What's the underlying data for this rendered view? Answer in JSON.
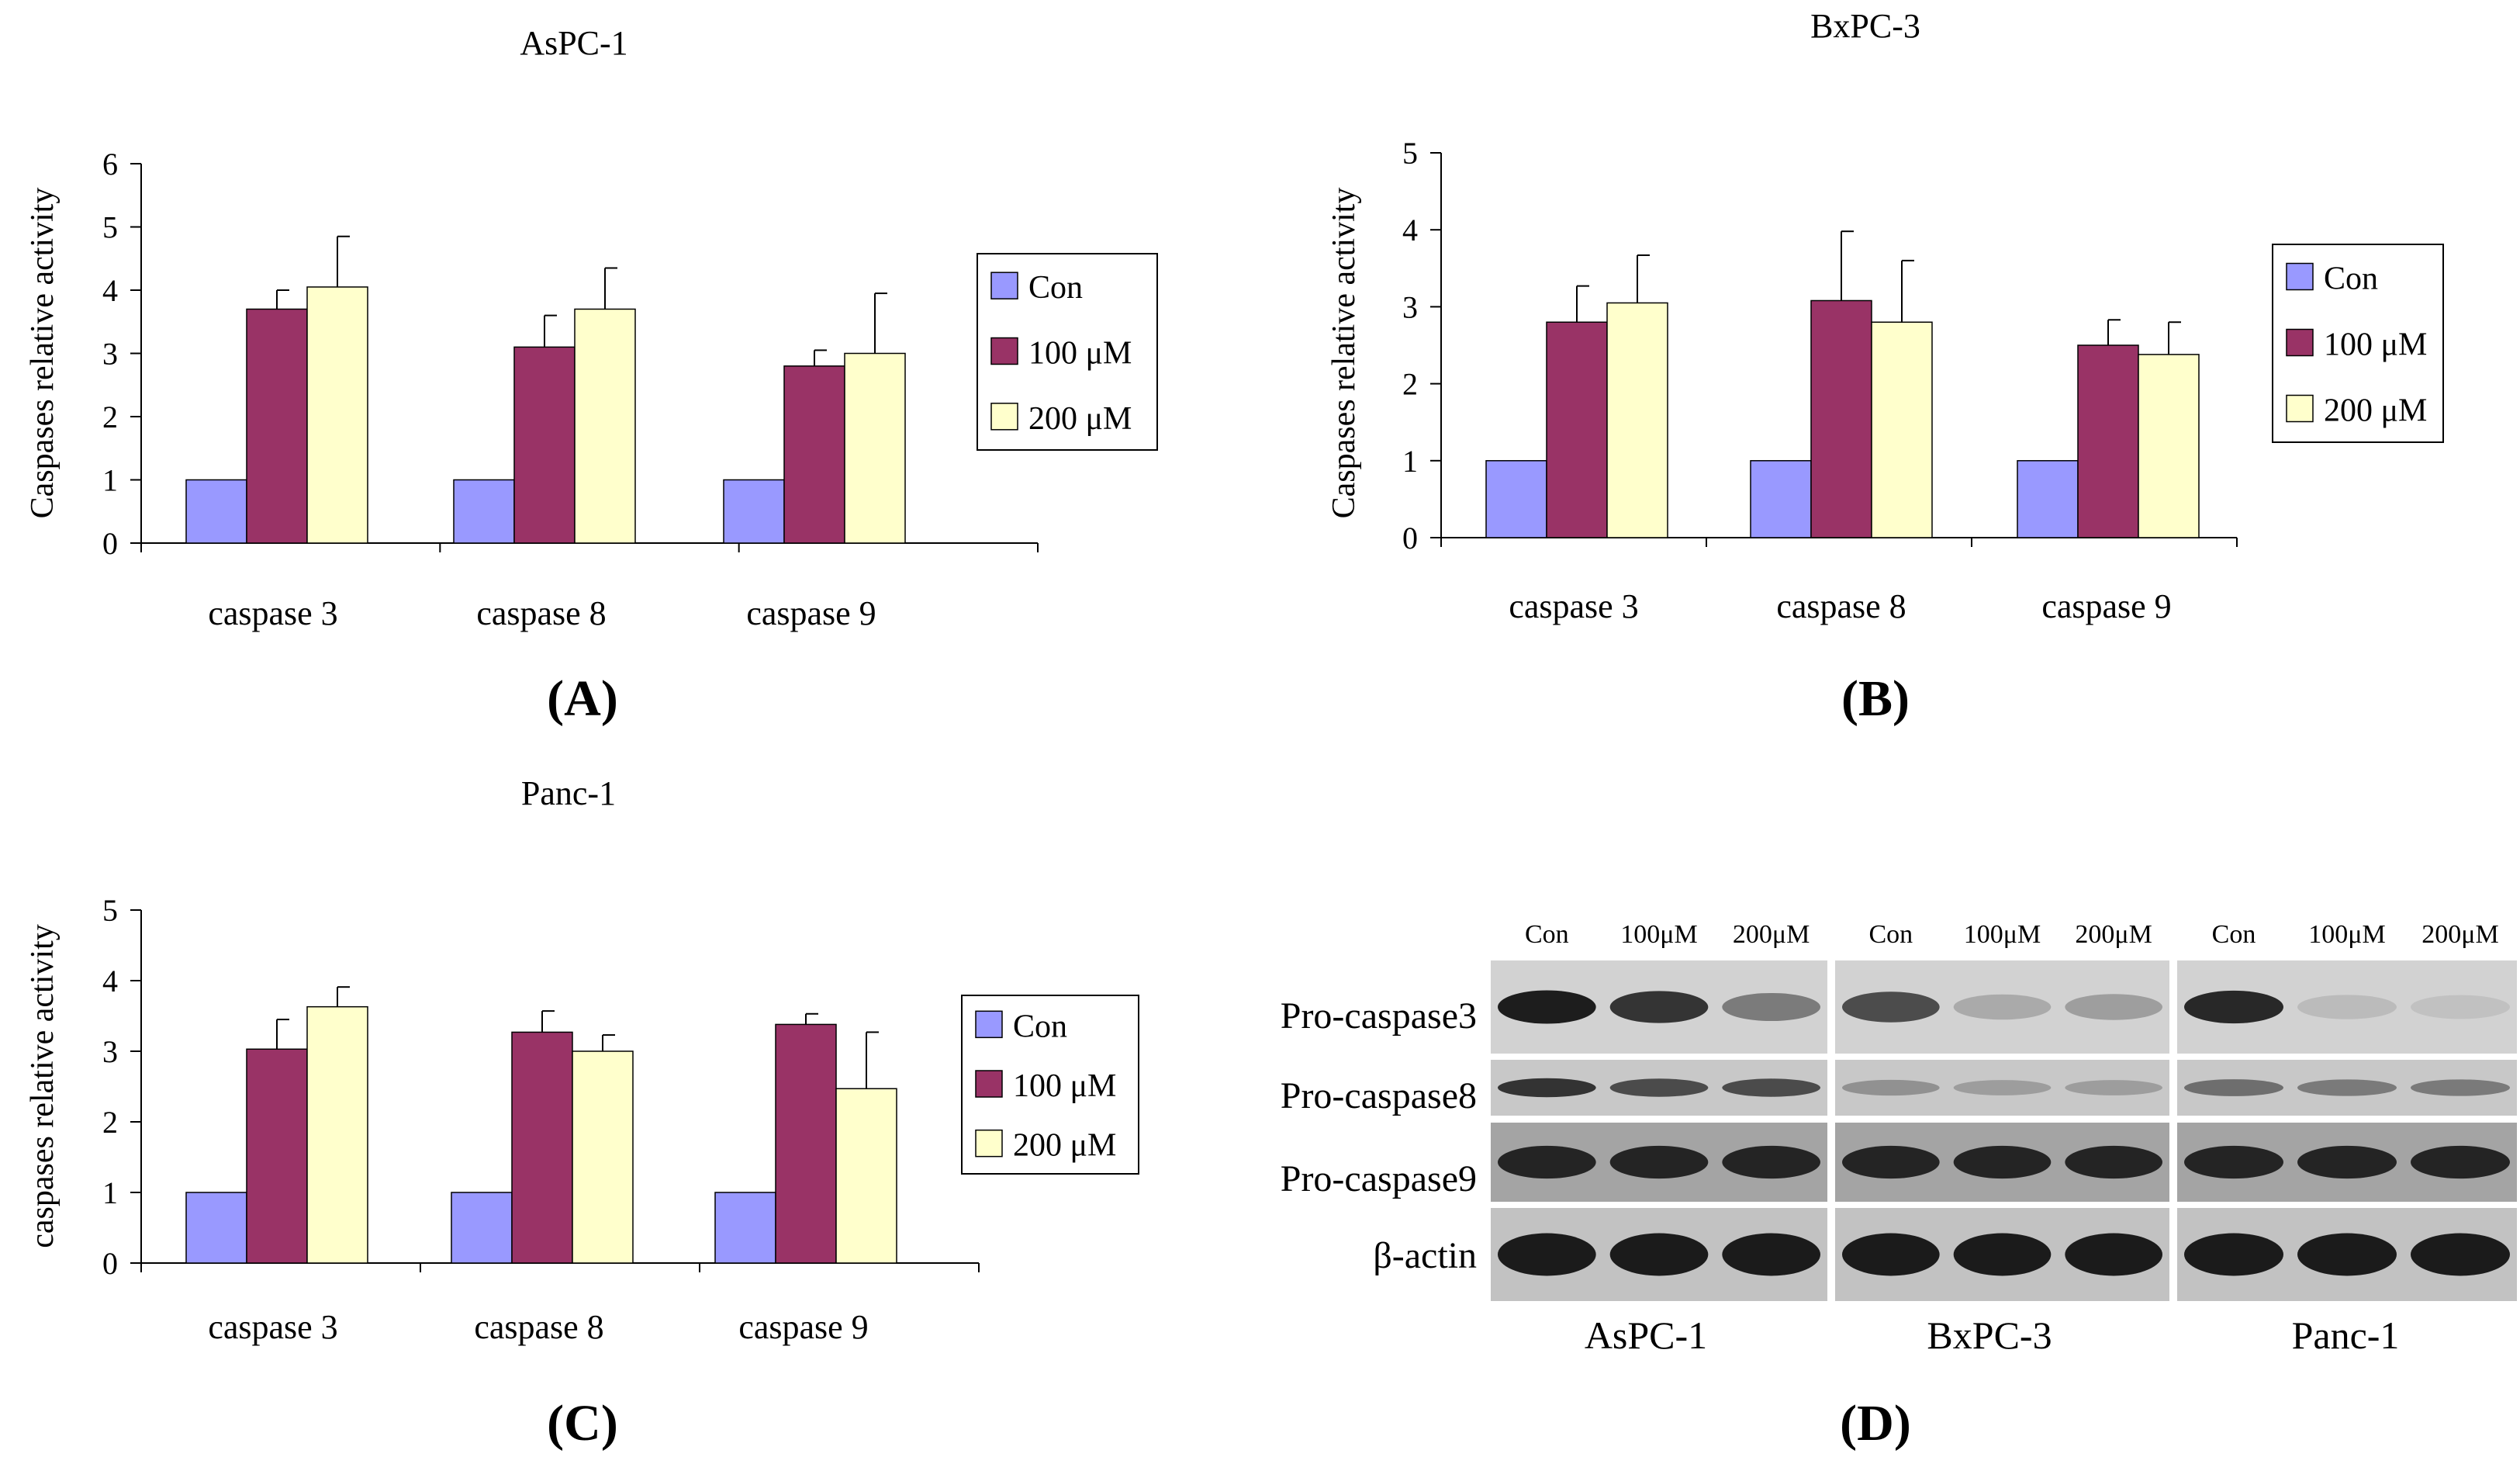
{
  "legend_labels": [
    "Con",
    "100 μM",
    "200 μM"
  ],
  "colors": {
    "con": "#9999ff",
    "m100": "#993366",
    "m200": "#ffffcc",
    "axis": "#000000"
  },
  "chart_data": [
    {
      "id": "A",
      "panel_label": "A",
      "type": "bar",
      "title": "AsPC-1",
      "ylabel": "Caspases relative activity",
      "xlabel": "",
      "categories": [
        "caspase 3",
        "caspase 8",
        "caspase 9"
      ],
      "ylim": [
        0,
        6
      ],
      "yticks": [
        0,
        1,
        2,
        3,
        4,
        5,
        6
      ],
      "series": [
        {
          "name": "Con",
          "values": [
            1,
            1,
            1
          ],
          "errors": [
            0,
            0,
            0
          ]
        },
        {
          "name": "100 μM",
          "values": [
            3.7,
            3.1,
            2.8
          ],
          "errors": [
            0.3,
            0.5,
            0.25
          ]
        },
        {
          "name": "200 μM",
          "values": [
            4.05,
            3.7,
            3.0
          ],
          "errors": [
            0.8,
            0.65,
            0.95
          ]
        }
      ]
    },
    {
      "id": "B",
      "panel_label": "B",
      "type": "bar",
      "title": "BxPC-3",
      "ylabel": "Caspases relative activity",
      "xlabel": "",
      "categories": [
        "caspase 3",
        "caspase 8",
        "caspase 9"
      ],
      "ylim": [
        0,
        5
      ],
      "yticks": [
        0,
        1,
        2,
        3,
        4,
        5
      ],
      "series": [
        {
          "name": "Con",
          "values": [
            1,
            1,
            1
          ],
          "errors": [
            0,
            0,
            0
          ]
        },
        {
          "name": "100 μM",
          "values": [
            2.8,
            3.08,
            2.5
          ],
          "errors": [
            0.47,
            0.9,
            0.33
          ]
        },
        {
          "name": "200 μM",
          "values": [
            3.05,
            2.8,
            2.38
          ],
          "errors": [
            0.62,
            0.8,
            0.42
          ]
        }
      ]
    },
    {
      "id": "C",
      "panel_label": "C",
      "type": "bar",
      "title": "Panc-1",
      "ylabel": "caspases relative activity",
      "xlabel": "",
      "categories": [
        "caspase 3",
        "caspase 8",
        "caspase 9"
      ],
      "ylim": [
        0,
        5
      ],
      "yticks": [
        0,
        1,
        2,
        3,
        4,
        5
      ],
      "series": [
        {
          "name": "Con",
          "values": [
            1,
            1,
            1
          ],
          "errors": [
            0,
            0,
            0
          ]
        },
        {
          "name": "100 μM",
          "values": [
            3.03,
            3.27,
            3.38
          ],
          "errors": [
            0.42,
            0.3,
            0.15
          ]
        },
        {
          "name": "200 μM",
          "values": [
            3.63,
            3.0,
            2.47
          ],
          "errors": [
            0.28,
            0.23,
            0.8
          ]
        }
      ]
    }
  ],
  "blot": {
    "panel_label": "D",
    "column_labels": [
      "Con",
      "100μM",
      "200μM"
    ],
    "row_labels": [
      "Pro-caspase3",
      "Pro-caspase8",
      "Pro-caspase9",
      "β-actin"
    ],
    "cell_lines": [
      "AsPC-1",
      "BxPC-3",
      "Panc-1"
    ],
    "band_intensity": [
      [
        [
          0.95,
          0.85,
          0.55
        ],
        [
          0.85,
          0.75,
          0.75
        ]
      ],
      [
        [
          0.75,
          0.35,
          0.4
        ],
        [
          0.45,
          0.4,
          0.4
        ]
      ],
      [
        [
          0.9,
          0.28,
          0.25
        ],
        [
          0.6,
          0.55,
          0.55
        ]
      ]
    ]
  }
}
